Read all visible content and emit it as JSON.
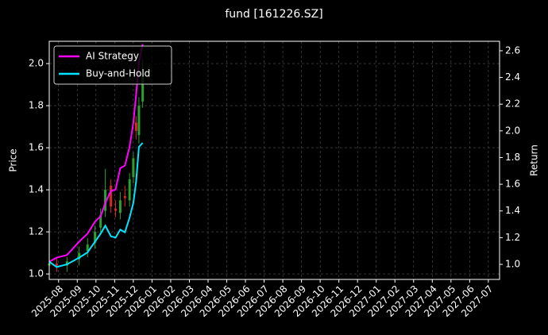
{
  "chart_data": {
    "type": "candlestick",
    "title": "fund [161226.SZ]",
    "y_label": "Price",
    "y2_label": "Return",
    "x": [
      -0.5,
      -0.1,
      0.45,
      1.1,
      1.55,
      1.95,
      2.25,
      2.5,
      2.8,
      3.05,
      3.3,
      3.55,
      3.8,
      4.0,
      4.15,
      4.3,
      4.5
    ],
    "candles": {
      "open": [
        1.04,
        1.05,
        1.04,
        1.07,
        1.11,
        1.15,
        1.22,
        1.3,
        1.42,
        1.31,
        1.29,
        1.37,
        1.35,
        1.46,
        1.72,
        1.66,
        1.82
      ],
      "high": [
        1.08,
        1.08,
        1.08,
        1.13,
        1.17,
        1.23,
        1.31,
        1.5,
        1.45,
        1.35,
        1.39,
        1.42,
        1.48,
        1.58,
        1.75,
        1.84,
        2.02
      ],
      "low": [
        1.01,
        1.01,
        1.01,
        1.04,
        1.08,
        1.12,
        1.19,
        1.27,
        1.29,
        1.27,
        1.26,
        1.32,
        1.32,
        1.43,
        1.64,
        1.62,
        1.79
      ],
      "close": [
        1.05,
        1.04,
        1.06,
        1.1,
        1.14,
        1.2,
        1.28,
        1.4,
        1.32,
        1.3,
        1.35,
        1.36,
        1.45,
        1.55,
        1.68,
        1.8,
        1.95
      ],
      "up_color": "#2ca02c",
      "down_color": "#d62728"
    },
    "series": [
      {
        "name": "AI Strategy",
        "color": "#ff00ff",
        "axis": "y2",
        "values": [
          1.02,
          1.05,
          1.07,
          1.17,
          1.23,
          1.32,
          1.36,
          1.46,
          1.55,
          1.56,
          1.72,
          1.74,
          1.88,
          2.06,
          2.27,
          2.51,
          2.65
        ]
      },
      {
        "name": "Buy-and-Hold",
        "color": "#00e5ff",
        "axis": "y2",
        "values": [
          1.02,
          0.98,
          1.0,
          1.05,
          1.09,
          1.17,
          1.23,
          1.29,
          1.21,
          1.2,
          1.26,
          1.24,
          1.35,
          1.46,
          1.62,
          1.88,
          1.91
        ]
      }
    ],
    "xlim": [
      -0.5,
      23.6
    ],
    "xticks": [
      {
        "value": 0,
        "label": "2025-08"
      },
      {
        "value": 1,
        "label": "2025-09"
      },
      {
        "value": 2,
        "label": "2025-10"
      },
      {
        "value": 3,
        "label": "2025-11"
      },
      {
        "value": 4,
        "label": "2025-12"
      },
      {
        "value": 5,
        "label": "2026-01"
      },
      {
        "value": 6,
        "label": "2026-02"
      },
      {
        "value": 7,
        "label": "2026-03"
      },
      {
        "value": 8,
        "label": "2026-04"
      },
      {
        "value": 9,
        "label": "2026-05"
      },
      {
        "value": 10,
        "label": "2026-06"
      },
      {
        "value": 11,
        "label": "2026-07"
      },
      {
        "value": 12,
        "label": "2026-08"
      },
      {
        "value": 13,
        "label": "2026-09"
      },
      {
        "value": 14,
        "label": "2026-10"
      },
      {
        "value": 15,
        "label": "2026-11"
      },
      {
        "value": 16,
        "label": "2026-12"
      },
      {
        "value": 17,
        "label": "2027-01"
      },
      {
        "value": 18,
        "label": "2027-02"
      },
      {
        "value": 19,
        "label": "2027-03"
      },
      {
        "value": 20,
        "label": "2027-04"
      },
      {
        "value": 21,
        "label": "2027-05"
      },
      {
        "value": 22,
        "label": "2027-06"
      },
      {
        "value": 23,
        "label": "2027-07"
      }
    ],
    "ylim": [
      0.974,
      2.106
    ],
    "yticks": [
      {
        "value": 1,
        "label": "1.0"
      },
      1.2,
      1.4,
      1.6,
      1.8,
      {
        "value": 2,
        "label": "2.0"
      }
    ],
    "y2lim": [
      0.887,
      2.671
    ],
    "y2ticks": [
      {
        "value": 1,
        "label": "1.0"
      },
      1.2,
      1.4,
      1.6,
      1.8,
      {
        "value": 2,
        "label": "2.0"
      },
      2.2,
      2.4,
      2.6
    ],
    "grid": true,
    "legend": "upper left"
  }
}
